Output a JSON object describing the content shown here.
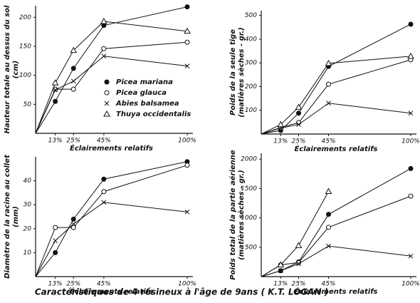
{
  "caption": "Caractéristiques de 4 résineux à l'âge de 9ans ( K.T. LOGAN )",
  "chart_data": [
    {
      "type": "line",
      "xlabel": "Éclairements relatifs",
      "ylabel": [
        "Hauteur totale au dessus du sol",
        "(cm)"
      ],
      "xlim": [
        0,
        100
      ],
      "xticks": [
        {
          "value": 13,
          "label": "13%"
        },
        {
          "value": 25,
          "label": "25%"
        },
        {
          "value": 45,
          "label": "45%"
        },
        {
          "value": 100,
          "label": "100%"
        }
      ],
      "ylim": [
        0,
        220
      ],
      "yticks": [
        50,
        100,
        150,
        200
      ],
      "legend": "center",
      "x": [
        0,
        13,
        25,
        45,
        100
      ],
      "series": [
        {
          "name": "Picea mariana",
          "marker": "filled-circle",
          "color": "#111",
          "values": [
            0,
            55,
            112,
            186,
            218
          ]
        },
        {
          "name": "Picea glauca",
          "marker": "open-circle",
          "color": "#111",
          "values": [
            0,
            76,
            76,
            146,
            157
          ]
        },
        {
          "name": "Abies balsamea",
          "marker": "cross",
          "color": "#111",
          "values": [
            0,
            75,
            90,
            133,
            116
          ]
        },
        {
          "name": "Thuya occidentalis",
          "marker": "triangle",
          "color": "#111",
          "values": [
            0,
            87,
            143,
            193,
            176
          ]
        }
      ]
    },
    {
      "type": "line",
      "xlabel": "Éclairements relatifs",
      "ylabel": [
        "Poids de la seule tige",
        "(matières sèches - gr.)"
      ],
      "xlim": [
        0,
        100
      ],
      "xticks": [
        {
          "value": 13,
          "label": "13%"
        },
        {
          "value": 25,
          "label": "25%"
        },
        {
          "value": 45,
          "label": "45%"
        },
        {
          "value": 100,
          "label": "100%"
        }
      ],
      "ylim": [
        0,
        520
      ],
      "yticks": [
        100,
        200,
        300,
        400,
        500
      ],
      "x": [
        0,
        13,
        25,
        45,
        100
      ],
      "series": [
        {
          "marker": "filled-circle",
          "color": "#111",
          "values": [
            0,
            15,
            88,
            285,
            463
          ]
        },
        {
          "marker": "open-circle",
          "color": "#111",
          "values": [
            0,
            27,
            48,
            210,
            313
          ]
        },
        {
          "marker": "cross",
          "color": "#111",
          "values": [
            0,
            25,
            40,
            130,
            88
          ]
        },
        {
          "marker": "triangle",
          "color": "#111",
          "values": [
            0,
            40,
            113,
            298,
            328
          ]
        }
      ]
    },
    {
      "type": "line",
      "xlabel": "Éclairements relatifs",
      "ylabel": [
        "Diamètre de la racine au collet",
        "(mm)"
      ],
      "xlim": [
        0,
        100
      ],
      "xticks": [
        {
          "value": 13,
          "label": "13%"
        },
        {
          "value": 25,
          "label": "25%"
        },
        {
          "value": 45,
          "label": "45%"
        },
        {
          "value": 100,
          "label": "100%"
        }
      ],
      "ylim": [
        0,
        50
      ],
      "yticks": [
        10,
        20,
        30,
        40
      ],
      "x": [
        0,
        13,
        25,
        45,
        100
      ],
      "series": [
        {
          "marker": "filled-circle",
          "color": "#111",
          "values": [
            0,
            10,
            24,
            40.7,
            48
          ]
        },
        {
          "marker": "open-circle",
          "color": "#111",
          "values": [
            0,
            20.5,
            20.5,
            35.5,
            46.5
          ]
        },
        {
          "marker": "cross",
          "color": "#111",
          "values": [
            0,
            15,
            22,
            31,
            27
          ]
        }
      ]
    },
    {
      "type": "line",
      "xlabel": "Éclairements relatifs",
      "ylabel": [
        "Poids total de la partie aérienne",
        "(matières sèches - gr.)"
      ],
      "xlim": [
        0,
        100
      ],
      "xticks": [
        {
          "value": 13,
          "label": "13%"
        },
        {
          "value": 25,
          "label": "25%"
        },
        {
          "value": 45,
          "label": "45%"
        },
        {
          "value": 100,
          "label": "100%"
        }
      ],
      "ylim": [
        0,
        2100
      ],
      "yticks": [
        500,
        1000,
        1500,
        2000
      ],
      "x": [
        0,
        13,
        25,
        45,
        100
      ],
      "series": [
        {
          "marker": "filled-circle",
          "color": "#111",
          "values": [
            0,
            100,
            250,
            1060,
            1840
          ]
        },
        {
          "marker": "open-circle",
          "color": "#111",
          "values": [
            0,
            200,
            240,
            840,
            1370
          ]
        },
        {
          "marker": "cross",
          "color": "#111",
          "values": [
            0,
            100,
            220,
            520,
            350
          ]
        },
        {
          "marker": "triangle",
          "color": "#111",
          "values": [
            0,
            200,
            530,
            1450,
            null
          ]
        }
      ]
    }
  ]
}
